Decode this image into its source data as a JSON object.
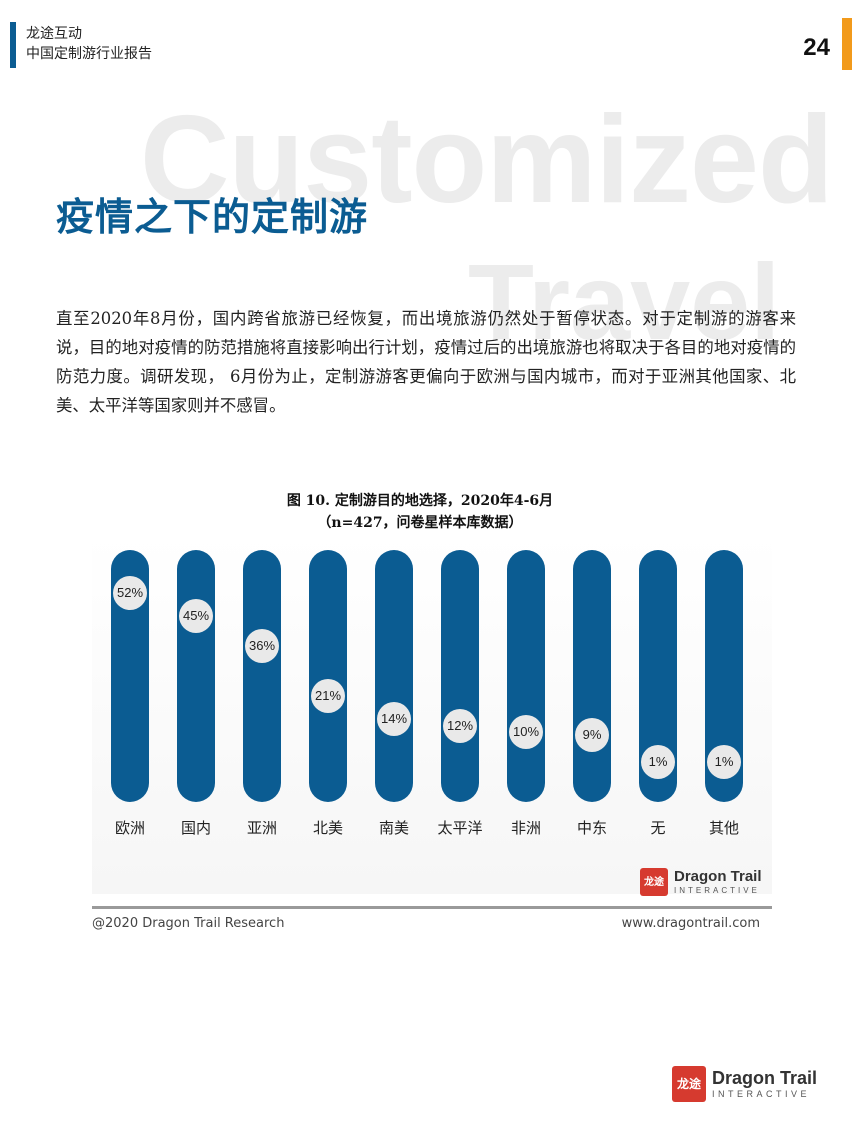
{
  "header": {
    "company": "龙途互动",
    "report_title": "中国定制游行业报告",
    "page_number": "24",
    "accent_color": "#f29a1b"
  },
  "watermark": {
    "line1": "Customized",
    "line2": "Travel"
  },
  "section": {
    "title": "疫情之下的定制游",
    "paragraph": "直至2020年8月份，国内跨省旅游已经恢复，而出境旅游仍然处于暂停状态。对于定制游的游客来说，目的地对疫情的防范措施将直接影响出行计划，疫情过后的出境旅游也将取决于各目的地对疫情的防范力度。调研发现， 6月份为止，定制游游客更偏向于欧洲与国内城市，而对于亚洲其他国家、北美、太平洋等国家则并不感冒。"
  },
  "chart_data": {
    "type": "bar",
    "title": "图 10. 定制游目的地选择，2020年4-6月",
    "subtitle": "（n=427，问卷星样本库数据）",
    "categories": [
      "欧洲",
      "国内",
      "亚洲",
      "北美",
      "南美",
      "太平洋",
      "非洲",
      "中东",
      "无",
      "其他"
    ],
    "values": [
      52,
      45,
      36,
      21,
      14,
      12,
      10,
      9,
      1,
      1
    ],
    "value_labels": [
      "52%",
      "45%",
      "36%",
      "21%",
      "14%",
      "12%",
      "10%",
      "9%",
      "1%",
      "1%"
    ],
    "unit": "%",
    "bar_color": "#0b5c92",
    "label_bg_color": "#e9e9e9",
    "grid": false,
    "legend": "none"
  },
  "chart_logo": {
    "mark": "龙途",
    "name": "Dragon Trail",
    "tagline": "INTERACTIVE"
  },
  "chart_footer": {
    "copyright": "@2020 Dragon Trail Research",
    "website": "www.dragontrail.com"
  },
  "page_logo": {
    "mark": "龙途",
    "name": "Dragon Trail",
    "tagline": "INTERACTIVE"
  },
  "brand_colors": {
    "primary": "#0b5c92",
    "logo_red": "#d63a2f"
  }
}
